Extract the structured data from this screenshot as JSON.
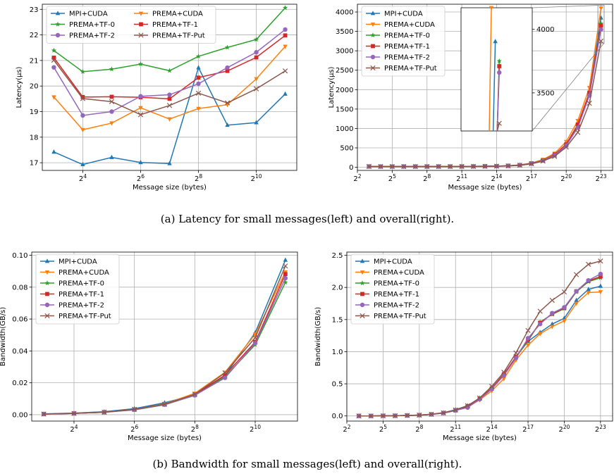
{
  "colors": {
    "MPI+CUDA": "#1f77b4",
    "PREMA+CUDA": "#ff7f0e",
    "PREMA+TF-0": "#2ca02c",
    "PREMA+TF-1": "#d62728",
    "PREMA+TF-2": "#9467bd",
    "PREMA+TF-Put": "#8c564b"
  },
  "markers": {
    "MPI+CUDA": "triangle-up",
    "PREMA+CUDA": "triangle-down",
    "PREMA+TF-0": "star",
    "PREMA+TF-1": "square",
    "PREMA+TF-2": "circle",
    "PREMA+TF-Put": "x"
  },
  "captions": {
    "a": "(a) Latency for small messages(left) and overall(right).",
    "b": "(b) Bandwidth for small messages(left) and overall(right)."
  },
  "chart_data": [
    {
      "id": "latency-small",
      "type": "line",
      "title": "",
      "xlabel": "Message size (bytes)",
      "ylabel": "Latency(μs)",
      "xscale": "log2",
      "x_exponents": [
        3,
        4,
        5,
        6,
        7,
        8,
        9,
        10,
        11
      ],
      "x_ticks": [
        4,
        6,
        8,
        10
      ],
      "xlim": [
        2.6,
        11.4
      ],
      "ylim": [
        16.7,
        23.2
      ],
      "y_ticks": [
        17,
        18,
        19,
        20,
        21,
        22,
        23
      ],
      "grid": true,
      "legend": "top, 2 columns",
      "legend_cols": 2,
      "series": [
        {
          "name": "MPI+CUDA",
          "values": [
            17.42,
            16.93,
            17.21,
            17.01,
            16.97,
            20.72,
            18.47,
            18.57,
            19.69
          ]
        },
        {
          "name": "PREMA+CUDA",
          "values": [
            19.57,
            18.29,
            18.55,
            19.15,
            18.71,
            19.12,
            19.27,
            20.28,
            21.55
          ]
        },
        {
          "name": "PREMA+TF-0",
          "values": [
            21.39,
            20.56,
            20.66,
            20.86,
            20.6,
            21.16,
            21.51,
            21.82,
            23.06
          ]
        },
        {
          "name": "PREMA+TF-1",
          "values": [
            21.11,
            19.57,
            19.58,
            19.56,
            19.5,
            20.33,
            20.59,
            21.12,
            21.98
          ]
        },
        {
          "name": "PREMA+TF-2",
          "values": [
            20.73,
            18.85,
            19.0,
            19.6,
            19.66,
            20.09,
            20.72,
            21.32,
            22.21
          ]
        },
        {
          "name": "PREMA+TF-Put",
          "values": [
            21.01,
            19.51,
            19.39,
            18.88,
            19.24,
            19.72,
            19.34,
            19.89,
            20.59
          ]
        }
      ]
    },
    {
      "id": "latency-overall",
      "type": "line",
      "title": "",
      "xlabel": "Message size (bytes)",
      "ylabel": "Latency(μs)",
      "xscale": "log2",
      "x_exponents": [
        3,
        4,
        5,
        6,
        7,
        8,
        9,
        10,
        11,
        12,
        13,
        14,
        15,
        16,
        17,
        18,
        19,
        20,
        21,
        22,
        23
      ],
      "x_ticks": [
        2,
        5,
        8,
        11,
        14,
        17,
        20,
        23
      ],
      "xlim": [
        2.0,
        24.0
      ],
      "ylim": [
        -80,
        4200
      ],
      "y_ticks": [
        0,
        500,
        1000,
        1500,
        2000,
        2500,
        3000,
        3500,
        4000
      ],
      "grid": true,
      "legend": "upper-left",
      "legend_cols": 1,
      "series": [
        {
          "name": "MPI+CUDA",
          "values": [
            17,
            17,
            17,
            17,
            17,
            21,
            19,
            19,
            20,
            21,
            23,
            27,
            33,
            50,
            90,
            160,
            300,
            560,
            1050,
            1900,
            3850
          ]
        },
        {
          "name": "PREMA+CUDA",
          "values": [
            20,
            18,
            19,
            19,
            19,
            19,
            19,
            20,
            22,
            23,
            25,
            30,
            38,
            58,
            110,
            200,
            360,
            660,
            1200,
            2050,
            4100
          ]
        },
        {
          "name": "PREMA+TF-0",
          "values": [
            21,
            21,
            21,
            21,
            21,
            21,
            22,
            22,
            23,
            25,
            28,
            32,
            40,
            60,
            100,
            180,
            320,
            580,
            1060,
            1880,
            3700
          ]
        },
        {
          "name": "PREMA+TF-1",
          "values": [
            21,
            20,
            20,
            20,
            20,
            20,
            21,
            21,
            22,
            24,
            27,
            31,
            39,
            58,
            100,
            180,
            330,
            590,
            1100,
            1920,
            3650
          ]
        },
        {
          "name": "PREMA+TF-2",
          "values": [
            21,
            19,
            19,
            20,
            20,
            20,
            21,
            21,
            22,
            24,
            26,
            30,
            38,
            56,
            95,
            175,
            310,
            560,
            1020,
            1850,
            3550
          ]
        },
        {
          "name": "PREMA+TF-Put",
          "values": [
            21,
            20,
            19,
            19,
            19,
            20,
            19,
            20,
            21,
            22,
            24,
            28,
            36,
            52,
            90,
            160,
            280,
            520,
            900,
            1650,
            3250
          ]
        }
      ],
      "inset": {
        "x_range": [
          22.73,
          23.27
        ],
        "ylim": [
          3200,
          4170
        ],
        "y_ticks": [
          3500,
          4000
        ],
        "x_positions": {
          "MPI+CUDA": 22.99,
          "PREMA+CUDA": 22.96,
          "PREMA+TF-0": 23.02,
          "PREMA+TF-1": 23.02,
          "PREMA+TF-2": 23.02,
          "PREMA+TF-Put": 23.02
        },
        "tops": {
          "MPI+CUDA": 3905,
          "PREMA+CUDA": 4170,
          "PREMA+TF-0": 3750,
          "PREMA+TF-1": 3710,
          "PREMA+TF-2": 3660,
          "PREMA+TF-Put": 3260
        }
      }
    },
    {
      "id": "bandwidth-small",
      "type": "line",
      "title": "",
      "xlabel": "Message size (bytes)",
      "ylabel": "Bandwidth(GB/s)",
      "xscale": "log2",
      "x_exponents": [
        3,
        4,
        5,
        6,
        7,
        8,
        9,
        10,
        11
      ],
      "x_ticks": [
        4,
        6,
        8,
        10
      ],
      "xlim": [
        2.6,
        11.4
      ],
      "ylim": [
        -0.004,
        0.102
      ],
      "y_ticks": [
        0.0,
        0.02,
        0.04,
        0.06,
        0.08,
        0.1
      ],
      "y_tick_labels": [
        "0.00",
        "0.02",
        "0.04",
        "0.06",
        "0.08",
        "0.10"
      ],
      "grid": true,
      "legend": "upper-left",
      "legend_cols": 1,
      "series": [
        {
          "name": "MPI+CUDA",
          "values": [
            0.0005,
            0.001,
            0.0019,
            0.0038,
            0.0075,
            0.0124,
            0.0246,
            0.0514,
            0.097
          ]
        },
        {
          "name": "PREMA+CUDA",
          "values": [
            0.0004,
            0.0009,
            0.0017,
            0.0033,
            0.0068,
            0.0134,
            0.0266,
            0.0505,
            0.0895
          ]
        },
        {
          "name": "PREMA+TF-0",
          "values": [
            0.0004,
            0.0008,
            0.0015,
            0.003,
            0.0062,
            0.0121,
            0.0238,
            0.0439,
            0.083
          ]
        },
        {
          "name": "PREMA+TF-1",
          "values": [
            0.0004,
            0.0008,
            0.0016,
            0.0032,
            0.0065,
            0.0126,
            0.0248,
            0.0456,
            0.0882
          ]
        },
        {
          "name": "PREMA+TF-2",
          "values": [
            0.0004,
            0.0008,
            0.0016,
            0.0031,
            0.0063,
            0.0122,
            0.0231,
            0.0449,
            0.0856
          ]
        },
        {
          "name": "PREMA+TF-Put",
          "values": [
            0.0004,
            0.0008,
            0.0016,
            0.0034,
            0.0066,
            0.0128,
            0.0262,
            0.0483,
            0.0933
          ]
        }
      ]
    },
    {
      "id": "bandwidth-overall",
      "type": "line",
      "title": "",
      "xlabel": "Message size (bytes)",
      "ylabel": "Bandwidth(GB/s)",
      "xscale": "log2",
      "x_exponents": [
        3,
        4,
        5,
        6,
        7,
        8,
        9,
        10,
        11,
        12,
        13,
        14,
        15,
        16,
        17,
        18,
        19,
        20,
        21,
        22,
        23
      ],
      "x_ticks": [
        2,
        5,
        8,
        11,
        14,
        17,
        20,
        23
      ],
      "xlim": [
        2.0,
        24.0
      ],
      "ylim": [
        -0.08,
        2.55
      ],
      "y_ticks": [
        0.0,
        0.5,
        1.0,
        1.5,
        2.0,
        2.5
      ],
      "y_tick_labels": [
        "0.0",
        "0.5",
        "1.0",
        "1.5",
        "2.0",
        "2.5"
      ],
      "grid": true,
      "legend": "upper-left",
      "legend_cols": 1,
      "series": [
        {
          "name": "MPI+CUDA",
          "values": [
            0,
            0,
            0.002,
            0.004,
            0.008,
            0.012,
            0.025,
            0.051,
            0.097,
            0.16,
            0.27,
            0.42,
            0.64,
            0.92,
            1.16,
            1.3,
            1.43,
            1.52,
            1.8,
            1.97,
            2.02
          ]
        },
        {
          "name": "PREMA+CUDA",
          "values": [
            0,
            0,
            0.002,
            0.003,
            0.007,
            0.013,
            0.027,
            0.05,
            0.09,
            0.14,
            0.25,
            0.39,
            0.58,
            0.87,
            1.1,
            1.28,
            1.39,
            1.48,
            1.75,
            1.92,
            1.93
          ]
        },
        {
          "name": "PREMA+TF-0",
          "values": [
            0,
            0,
            0.002,
            0.003,
            0.006,
            0.012,
            0.024,
            0.044,
            0.083,
            0.15,
            0.28,
            0.43,
            0.65,
            0.91,
            1.17,
            1.46,
            1.58,
            1.67,
            1.93,
            2.09,
            2.15
          ]
        },
        {
          "name": "PREMA+TF-1",
          "values": [
            0,
            0,
            0.002,
            0.003,
            0.007,
            0.013,
            0.025,
            0.046,
            0.088,
            0.15,
            0.27,
            0.43,
            0.65,
            0.92,
            1.19,
            1.45,
            1.59,
            1.68,
            1.94,
            2.1,
            2.17
          ]
        },
        {
          "name": "PREMA+TF-2",
          "values": [
            0,
            0,
            0.002,
            0.003,
            0.006,
            0.012,
            0.023,
            0.045,
            0.086,
            0.13,
            0.26,
            0.42,
            0.63,
            0.9,
            1.21,
            1.43,
            1.6,
            1.69,
            1.94,
            2.11,
            2.21
          ]
        },
        {
          "name": "PREMA+TF-Put",
          "values": [
            0,
            0,
            0.002,
            0.003,
            0.007,
            0.013,
            0.026,
            0.048,
            0.093,
            0.16,
            0.28,
            0.46,
            0.68,
            0.98,
            1.33,
            1.63,
            1.8,
            1.93,
            2.2,
            2.36,
            2.41
          ]
        }
      ]
    }
  ]
}
